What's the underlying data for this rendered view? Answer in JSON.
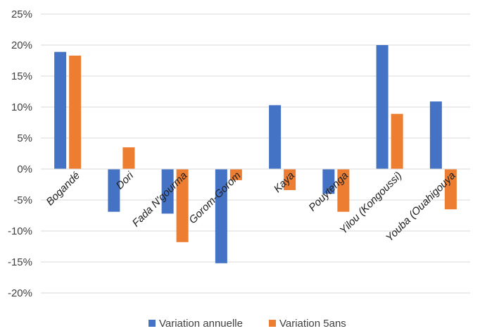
{
  "chart_data": {
    "type": "bar",
    "title": "",
    "xlabel": "",
    "ylabel": "",
    "categories": [
      "Bogandé",
      "Dori",
      "Fada N'gourma",
      "Gorom-Gorom",
      "Kaya",
      "Pouytenga",
      "Yilou (Kongoussi)",
      "Youba (Ouahigouya"
    ],
    "series": [
      {
        "name": "Variation annuelle",
        "color": "#4472C4",
        "values": [
          18.9,
          -6.9,
          -7.2,
          -15.2,
          10.3,
          -4.0,
          20.0,
          10.9
        ]
      },
      {
        "name": "Variation 5ans",
        "color": "#ED7D31",
        "values": [
          18.3,
          3.5,
          -11.8,
          -1.8,
          -3.4,
          -6.9,
          8.9,
          -6.5
        ]
      }
    ],
    "ylim": [
      -20,
      25
    ],
    "yticks": [
      -20,
      -15,
      -10,
      -5,
      0,
      5,
      10,
      15,
      20,
      25
    ],
    "ytick_labels": [
      "-20%",
      "-15%",
      "-10%",
      "-5%",
      "0%",
      "5%",
      "10%",
      "15%",
      "20%",
      "25%"
    ],
    "grid": true,
    "legend": "bottom"
  }
}
